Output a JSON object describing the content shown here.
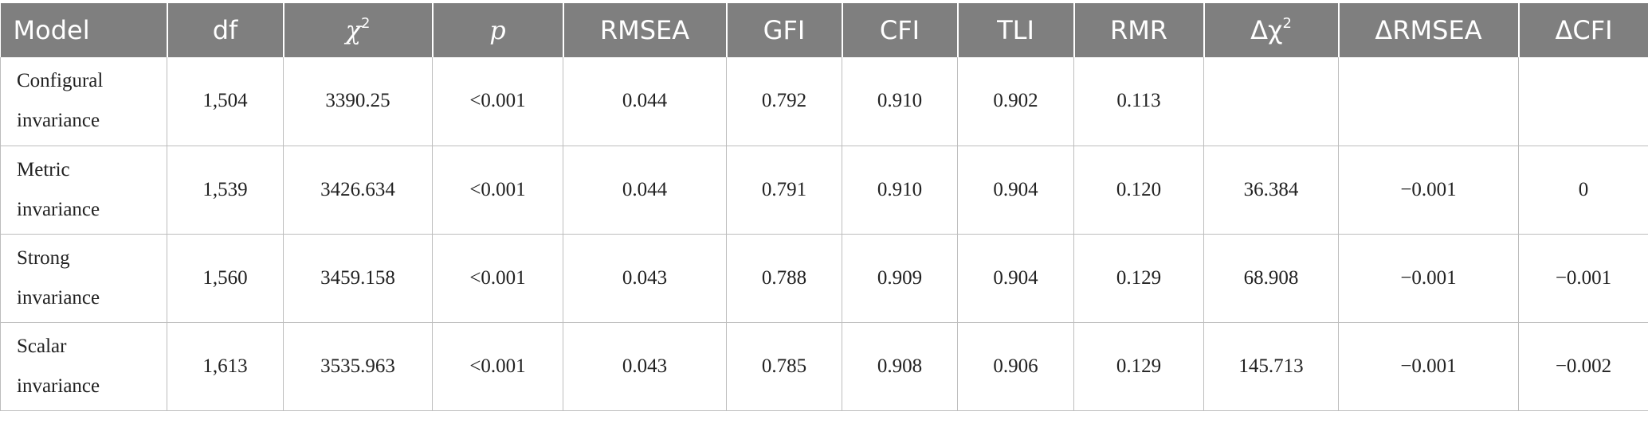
{
  "header": {
    "model": "Model",
    "df": "df",
    "chi2_base": "χ",
    "chi2_sup": "2",
    "p": "p",
    "rmsea": "RMSEA",
    "gfi": "GFI",
    "cfi": "CFI",
    "tli": "TLI",
    "rmr": "RMR",
    "dchi2_base": "Δχ",
    "dchi2_sup": "2",
    "drmsea": "ΔRMSEA",
    "dcfi": "ΔCFI"
  },
  "rows": [
    {
      "model_line1": "Configural",
      "model_line2": "invariance",
      "df": "1,504",
      "chi2": "3390.25",
      "p": "<0.001",
      "rmsea": "0.044",
      "gfi": "0.792",
      "cfi": "0.910",
      "tli": "0.902",
      "rmr": "0.113",
      "dchi2": "",
      "drmsea": "",
      "dcfi": ""
    },
    {
      "model_line1": "Metric",
      "model_line2": "invariance",
      "df": "1,539",
      "chi2": "3426.634",
      "p": "<0.001",
      "rmsea": "0.044",
      "gfi": "0.791",
      "cfi": "0.910",
      "tli": "0.904",
      "rmr": "0.120",
      "dchi2": "36.384",
      "drmsea": "−0.001",
      "dcfi": "0"
    },
    {
      "model_line1": "Strong",
      "model_line2": "invariance",
      "df": "1,560",
      "chi2": "3459.158",
      "p": "<0.001",
      "rmsea": "0.043",
      "gfi": "0.788",
      "cfi": "0.909",
      "tli": "0.904",
      "rmr": "0.129",
      "dchi2": "68.908",
      "drmsea": "−0.001",
      "dcfi": "−0.001"
    },
    {
      "model_line1": "Scalar",
      "model_line2": "invariance",
      "df": "1,613",
      "chi2": "3535.963",
      "p": "<0.001",
      "rmsea": "0.043",
      "gfi": "0.785",
      "cfi": "0.908",
      "tli": "0.906",
      "rmr": "0.129",
      "dchi2": "145.713",
      "drmsea": "−0.001",
      "dcfi": "−0.002"
    }
  ]
}
